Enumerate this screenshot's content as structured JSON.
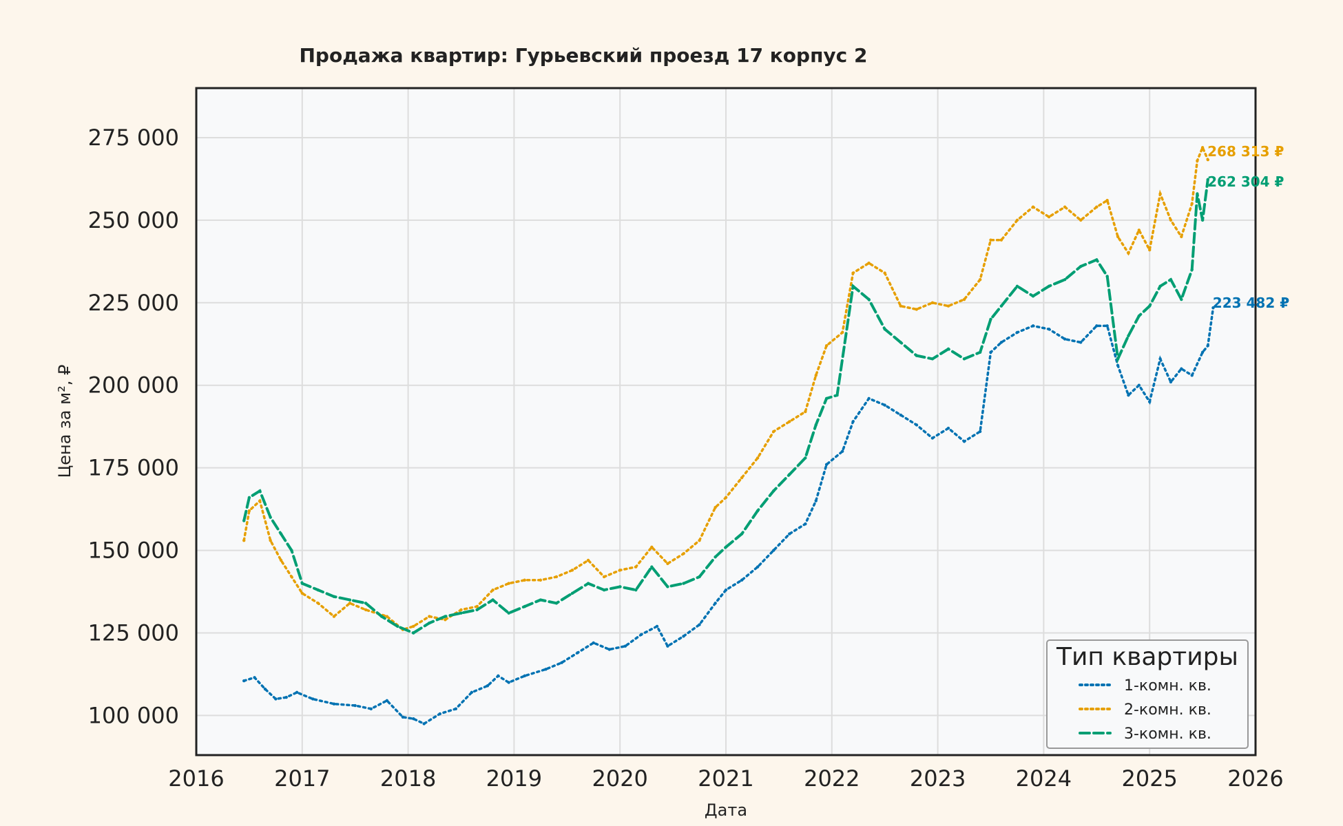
{
  "chart_data": {
    "type": "line",
    "title": "Продажа квартир: Гурьевский проезд 17 корпус 2",
    "xlabel": "Дата",
    "ylabel": "Цена за м², ₽",
    "xlim": [
      2016,
      2026
    ],
    "ylim": [
      88000,
      290000
    ],
    "x_ticks": [
      2016,
      2017,
      2018,
      2019,
      2020,
      2021,
      2022,
      2023,
      2024,
      2025,
      2026
    ],
    "x_tick_labels": [
      "2016",
      "2017",
      "2018",
      "2019",
      "2020",
      "2021",
      "2022",
      "2023",
      "2024",
      "2025",
      "2026"
    ],
    "y_ticks": [
      100000,
      125000,
      150000,
      175000,
      200000,
      225000,
      250000,
      275000
    ],
    "y_tick_labels": [
      "100 000",
      "125 000",
      "150 000",
      "175 000",
      "200 000",
      "225 000",
      "250 000",
      "275 000"
    ],
    "grid": true,
    "legend": {
      "title": "Тип квартиры",
      "position": "bottom-right"
    },
    "series": [
      {
        "name": "1-комн. кв.",
        "color": "#0072b2",
        "style": "dotted",
        "end_label": "223 482 ₽",
        "x": [
          2016.45,
          2016.55,
          2016.65,
          2016.75,
          2016.85,
          2016.95,
          2017.1,
          2017.3,
          2017.5,
          2017.65,
          2017.8,
          2017.95,
          2018.05,
          2018.15,
          2018.3,
          2018.45,
          2018.6,
          2018.75,
          2018.85,
          2018.95,
          2019.1,
          2019.3,
          2019.45,
          2019.6,
          2019.75,
          2019.9,
          2020.05,
          2020.2,
          2020.35,
          2020.45,
          2020.6,
          2020.75,
          2020.9,
          2021.0,
          2021.15,
          2021.3,
          2021.45,
          2021.6,
          2021.75,
          2021.85,
          2021.95,
          2022.1,
          2022.2,
          2022.35,
          2022.5,
          2022.65,
          2022.8,
          2022.95,
          2023.1,
          2023.25,
          2023.4,
          2023.5,
          2023.6,
          2023.75,
          2023.9,
          2024.05,
          2024.2,
          2024.35,
          2024.5,
          2024.6,
          2024.7,
          2024.8,
          2024.9,
          2025.0,
          2025.1,
          2025.2,
          2025.3,
          2025.4,
          2025.5,
          2025.55,
          2025.6
        ],
        "values": [
          110500,
          111500,
          108000,
          105000,
          105500,
          107000,
          105000,
          103500,
          103000,
          102000,
          104500,
          99500,
          99000,
          97500,
          100500,
          102000,
          107000,
          109000,
          112000,
          110000,
          112000,
          114000,
          116000,
          119000,
          122000,
          120000,
          121000,
          124500,
          127000,
          121000,
          124000,
          127500,
          134000,
          138000,
          141000,
          145000,
          150000,
          155000,
          158000,
          165000,
          176000,
          180000,
          189000,
          196000,
          194000,
          191000,
          188000,
          184000,
          187000,
          183000,
          186000,
          210000,
          213000,
          216000,
          218000,
          217000,
          214000,
          213000,
          218000,
          218000,
          206000,
          197000,
          200000,
          195000,
          208000,
          201000,
          205000,
          203000,
          210000,
          212000,
          223482
        ]
      },
      {
        "name": "2-комн. кв.",
        "color": "#e69f00",
        "style": "dotted",
        "end_label": "268 313 ₽",
        "x": [
          2016.45,
          2016.5,
          2016.6,
          2016.7,
          2016.8,
          2016.9,
          2017.0,
          2017.15,
          2017.3,
          2017.45,
          2017.6,
          2017.8,
          2017.95,
          2018.05,
          2018.2,
          2018.35,
          2018.5,
          2018.65,
          2018.8,
          2018.95,
          2019.1,
          2019.25,
          2019.4,
          2019.55,
          2019.7,
          2019.85,
          2020.0,
          2020.15,
          2020.3,
          2020.45,
          2020.6,
          2020.75,
          2020.9,
          2021.0,
          2021.15,
          2021.3,
          2021.45,
          2021.6,
          2021.75,
          2021.85,
          2021.95,
          2022.1,
          2022.2,
          2022.35,
          2022.5,
          2022.65,
          2022.8,
          2022.95,
          2023.1,
          2023.25,
          2023.4,
          2023.5,
          2023.6,
          2023.75,
          2023.9,
          2024.05,
          2024.2,
          2024.35,
          2024.5,
          2024.6,
          2024.7,
          2024.8,
          2024.9,
          2025.0,
          2025.1,
          2025.2,
          2025.3,
          2025.4,
          2025.45,
          2025.5,
          2025.55
        ],
        "values": [
          153000,
          162000,
          165000,
          153000,
          147000,
          142000,
          137000,
          134000,
          130000,
          134000,
          132000,
          130000,
          126000,
          127000,
          130000,
          129000,
          132000,
          133000,
          138000,
          140000,
          141000,
          141000,
          142000,
          144000,
          147000,
          142000,
          144000,
          145000,
          151000,
          146000,
          149000,
          153000,
          163000,
          166000,
          172000,
          178000,
          186000,
          189000,
          192000,
          203000,
          212000,
          216000,
          234000,
          237000,
          234000,
          224000,
          223000,
          225000,
          224000,
          226000,
          232000,
          244000,
          244000,
          250000,
          254000,
          251000,
          254000,
          250000,
          254000,
          256000,
          245000,
          240000,
          247000,
          241000,
          258000,
          250000,
          245000,
          255000,
          268000,
          272000,
          268313
        ]
      },
      {
        "name": "3-комн. кв.",
        "color": "#009e73",
        "style": "dashed",
        "end_label": "262 304 ₽",
        "x": [
          2016.45,
          2016.5,
          2016.6,
          2016.7,
          2016.8,
          2016.9,
          2017.0,
          2017.15,
          2017.3,
          2017.45,
          2017.6,
          2017.75,
          2017.9,
          2018.05,
          2018.2,
          2018.35,
          2018.5,
          2018.65,
          2018.8,
          2018.95,
          2019.1,
          2019.25,
          2019.4,
          2019.55,
          2019.7,
          2019.85,
          2020.0,
          2020.15,
          2020.3,
          2020.45,
          2020.6,
          2020.75,
          2020.9,
          2021.0,
          2021.15,
          2021.3,
          2021.45,
          2021.6,
          2021.75,
          2021.85,
          2021.95,
          2022.05,
          2022.2,
          2022.35,
          2022.5,
          2022.65,
          2022.8,
          2022.95,
          2023.1,
          2023.25,
          2023.4,
          2023.5,
          2023.6,
          2023.75,
          2023.9,
          2024.05,
          2024.2,
          2024.35,
          2024.5,
          2024.6,
          2024.7,
          2024.8,
          2024.9,
          2025.0,
          2025.1,
          2025.2,
          2025.3,
          2025.4,
          2025.45,
          2025.5,
          2025.55
        ],
        "values": [
          159000,
          166000,
          168000,
          160000,
          155000,
          150000,
          140000,
          138000,
          136000,
          135000,
          134000,
          130000,
          127000,
          125000,
          128000,
          130000,
          131000,
          132000,
          135000,
          131000,
          133000,
          135000,
          134000,
          137000,
          140000,
          138000,
          139000,
          138000,
          145000,
          139000,
          140000,
          142000,
          148000,
          151000,
          155000,
          162000,
          168000,
          173000,
          178000,
          188000,
          196000,
          197000,
          230000,
          226000,
          217000,
          213000,
          209000,
          208000,
          211000,
          208000,
          210000,
          220000,
          224000,
          230000,
          227000,
          230000,
          232000,
          236000,
          238000,
          233000,
          208000,
          215000,
          221000,
          224000,
          230000,
          232000,
          226000,
          235000,
          258000,
          250000,
          262304
        ]
      }
    ]
  }
}
